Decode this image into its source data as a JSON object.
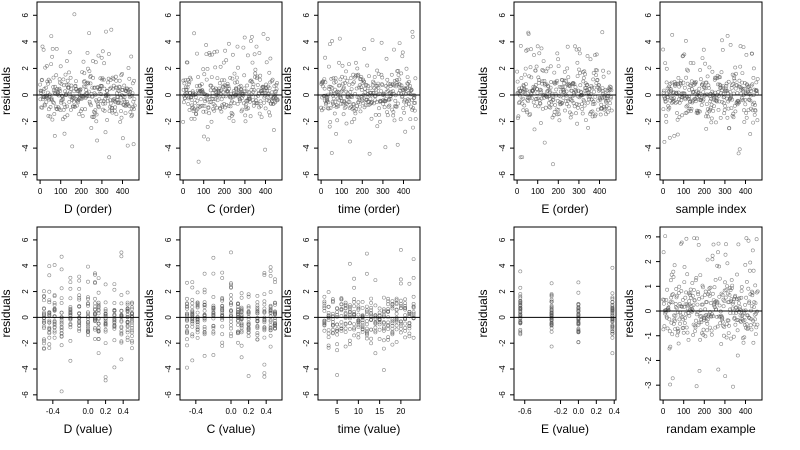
{
  "chart_data": [
    {
      "type": "scatter",
      "xlabel": "D (order)",
      "ylabel": "residuals",
      "xlim": [
        -15,
        480
      ],
      "ylim": [
        -6.4,
        7
      ],
      "xticks": [
        0,
        100,
        200,
        300,
        400
      ],
      "xtick_labels": [
        "0",
        "100",
        "200",
        "300",
        "400"
      ],
      "yticks": [
        -6,
        -4,
        -2,
        0,
        2,
        4,
        6
      ],
      "ytick_labels": [
        "-6",
        "-4",
        "-2",
        "0",
        "2",
        "4",
        "6"
      ],
      "hline": 0
    },
    {
      "type": "scatter",
      "xlabel": "C (order)",
      "ylabel": "residuals",
      "xlim": [
        -15,
        480
      ],
      "ylim": [
        -6.4,
        7
      ],
      "xticks": [
        0,
        100,
        200,
        300,
        400
      ],
      "xtick_labels": [
        "0",
        "100",
        "200",
        "300",
        "400"
      ],
      "yticks": [
        -6,
        -4,
        -2,
        0,
        2,
        4,
        6
      ],
      "ytick_labels": [
        "-6",
        "-4",
        "-2",
        "0",
        "2",
        "4",
        "6"
      ],
      "hline": 0
    },
    {
      "type": "scatter",
      "xlabel": "time (order)",
      "ylabel": "residuals",
      "xlim": [
        -15,
        480
      ],
      "ylim": [
        -6.4,
        7
      ],
      "xticks": [
        0,
        100,
        200,
        300,
        400
      ],
      "xtick_labels": [
        "0",
        "100",
        "200",
        "300",
        "400"
      ],
      "yticks": [
        -6,
        -4,
        -2,
        0,
        2,
        4,
        6
      ],
      "ytick_labels": [
        "-6",
        "-4",
        "-2",
        "0",
        "2",
        "4",
        "6"
      ],
      "hline": 0
    },
    {
      "type": "scatter",
      "xlabel": "E (order)",
      "ylabel": "residuals",
      "xlim": [
        -15,
        480
      ],
      "ylim": [
        -6.4,
        7
      ],
      "xticks": [
        0,
        100,
        200,
        300,
        400
      ],
      "xtick_labels": [
        "0",
        "100",
        "200",
        "300",
        "400"
      ],
      "yticks": [
        -6,
        -4,
        -2,
        0,
        2,
        4,
        6
      ],
      "ytick_labels": [
        "-6",
        "-4",
        "-2",
        "0",
        "2",
        "4",
        "6"
      ],
      "hline": 0
    },
    {
      "type": "scatter",
      "xlabel": "sample index",
      "ylabel": "residuals",
      "xlim": [
        -15,
        480
      ],
      "ylim": [
        -6.4,
        7
      ],
      "xticks": [
        0,
        100,
        200,
        300,
        400
      ],
      "xtick_labels": [
        "0",
        "100",
        "200",
        "300",
        "400"
      ],
      "yticks": [
        -6,
        -4,
        -2,
        0,
        2,
        4,
        6
      ],
      "ytick_labels": [
        "-6",
        "-4",
        "-2",
        "0",
        "2",
        "4",
        "6"
      ],
      "hline": 0
    },
    {
      "type": "scatter",
      "xlabel": "D (value)",
      "ylabel": "residuals",
      "xlim": [
        -0.58,
        0.58
      ],
      "ylim": [
        -6.4,
        7
      ],
      "xticks": [
        -0.4,
        0,
        0.2,
        0.4
      ],
      "xtick_labels": [
        "-0.4",
        "0.0",
        "0.2",
        "0.4"
      ],
      "yticks": [
        -6,
        -4,
        -2,
        0,
        2,
        4,
        6
      ],
      "ytick_labels": [
        "-6",
        "-4",
        "-2",
        "0",
        "2",
        "4",
        "6"
      ],
      "hline": 0
    },
    {
      "type": "scatter",
      "xlabel": "C (value)",
      "ylabel": "residuals",
      "xlim": [
        -0.58,
        0.58
      ],
      "ylim": [
        -6.4,
        7
      ],
      "xticks": [
        -0.4,
        0,
        0.2,
        0.4
      ],
      "xtick_labels": [
        "-0.4",
        "0.0",
        "0.2",
        "0.4"
      ],
      "yticks": [
        -6,
        -4,
        -2,
        0,
        2,
        4,
        6
      ],
      "ytick_labels": [
        "-6",
        "-4",
        "-2",
        "0",
        "2",
        "4",
        "6"
      ],
      "hline": 0
    },
    {
      "type": "scatter",
      "xlabel": "time (value)",
      "ylabel": "residuals",
      "xlim": [
        0.5,
        24.5
      ],
      "ylim": [
        -6.4,
        7
      ],
      "xticks": [
        5,
        10,
        15,
        20
      ],
      "xtick_labels": [
        "5",
        "10",
        "15",
        "20"
      ],
      "yticks": [
        -6,
        -4,
        -2,
        0,
        2,
        4,
        6
      ],
      "ytick_labels": [
        "-6",
        "-4",
        "-2",
        "0",
        "2",
        "4",
        "6"
      ],
      "hline": 0
    },
    {
      "type": "scatter",
      "xlabel": "E (value)",
      "ylabel": "residuals",
      "xlim": [
        -0.72,
        0.42
      ],
      "ylim": [
        -6.4,
        7
      ],
      "xticks": [
        -0.6,
        -0.2,
        0,
        0.2,
        0.4
      ],
      "xtick_labels": [
        "-0.6",
        "-0.2",
        "0.0",
        "0.2",
        "0.4"
      ],
      "yticks": [
        -6,
        -4,
        -2,
        0,
        2,
        4,
        6
      ],
      "ytick_labels": [
        "-6",
        "-4",
        "-2",
        "0",
        "2",
        "4",
        "6"
      ],
      "hline": 0
    },
    {
      "type": "scatter",
      "xlabel": "randam example",
      "ylabel": "residuals",
      "xlim": [
        -15,
        480
      ],
      "ylim": [
        -3.6,
        3.4
      ],
      "xticks": [
        0,
        100,
        200,
        300,
        400
      ],
      "xtick_labels": [
        "0",
        "100",
        "200",
        "300",
        "400"
      ],
      "yticks": [
        -3,
        -2,
        -1,
        0,
        1,
        2,
        3
      ],
      "ytick_labels": [
        "-3",
        "-2",
        "-1",
        "0",
        "1",
        "2",
        "3"
      ],
      "hline": 0
    }
  ]
}
